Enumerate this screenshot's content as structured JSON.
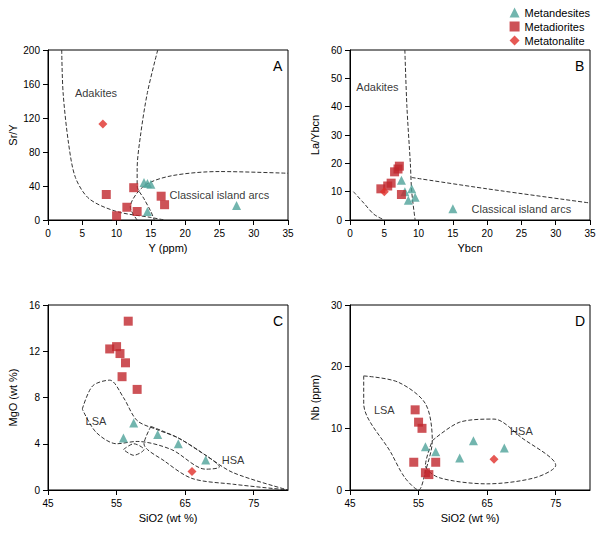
{
  "chart_data": [
    {
      "type": "scatter",
      "panel": "A",
      "x_label": "Y (ppm)",
      "y_label": "Sr/Y",
      "xlim": [
        0,
        35
      ],
      "ylim": [
        0,
        200
      ],
      "xticks": [
        0,
        5,
        10,
        15,
        20,
        25,
        30,
        35
      ],
      "yticks": [
        0,
        40,
        80,
        120,
        160,
        200
      ],
      "grid": false,
      "legend": "top-right",
      "series": [
        {
          "name": "Metandesites",
          "color": "#4fa39a",
          "marker": "triangle",
          "x": [
            14,
            14.5,
            15,
            14.5,
            27.5
          ],
          "y": [
            44,
            43,
            42,
            10,
            17
          ]
        },
        {
          "name": "Metadiorites",
          "color": "#c0272d",
          "marker": "square",
          "x": [
            8.5,
            10,
            11.5,
            12.5,
            13,
            16.5,
            17
          ],
          "y": [
            30,
            5,
            15,
            38,
            10,
            28,
            18
          ]
        },
        {
          "name": "Metatonalite",
          "color": "#e0302a",
          "marker": "diamond",
          "x": [
            8
          ],
          "y": [
            113
          ]
        }
      ],
      "regions": [
        {
          "label": "Adakites",
          "label_at": [
            7,
            150
          ],
          "line_style": "dashed",
          "paths": [
            [
              [
                2,
                200
              ],
              [
                2.2,
                150
              ],
              [
                3,
                90
              ],
              [
                4,
                50
              ],
              [
                6,
                25
              ],
              [
                10,
                10
              ],
              [
                15,
                3
              ],
              [
                17,
                0
              ]
            ],
            [
              [
                16,
                200
              ],
              [
                14.5,
                150
              ],
              [
                13.5,
                100
              ],
              [
                13,
                60
              ],
              [
                13,
                40
              ],
              [
                14,
                25
              ],
              [
                15,
                10
              ],
              [
                15.5,
                0
              ]
            ]
          ]
        },
        {
          "label": "Classical island arcs",
          "label_at": [
            25,
            30
          ],
          "line_style": "dashed",
          "paths": [
            [
              [
                13,
                0
              ],
              [
                12,
                15
              ],
              [
                14,
                40
              ],
              [
                18,
                52
              ],
              [
                25,
                57
              ],
              [
                35,
                55
              ]
            ]
          ]
        }
      ]
    },
    {
      "type": "scatter",
      "panel": "B",
      "x_label": "Ybcn",
      "y_label": "La/Ybcn",
      "xlim": [
        0,
        35
      ],
      "ylim": [
        0,
        60
      ],
      "xticks": [
        0,
        5,
        10,
        15,
        20,
        25,
        30,
        35
      ],
      "yticks": [
        0,
        10,
        20,
        30,
        40,
        50,
        60
      ],
      "grid": false,
      "legend": "top-right",
      "series": [
        {
          "name": "Metandesites",
          "color": "#4fa39a",
          "marker": "triangle",
          "x": [
            7.5,
            8,
            8.5,
            9,
            9.5,
            15
          ],
          "y": [
            14,
            10,
            7,
            11,
            8,
            4
          ]
        },
        {
          "name": "Metadiorites",
          "color": "#c0272d",
          "marker": "square",
          "x": [
            4.5,
            5.5,
            6,
            6.5,
            7,
            7.2,
            7.5
          ],
          "y": [
            11,
            12,
            13,
            17,
            18,
            19,
            9
          ]
        },
        {
          "name": "Metatonalite",
          "color": "#e0302a",
          "marker": "diamond",
          "x": [
            5
          ],
          "y": [
            10
          ]
        }
      ],
      "regions": [
        {
          "label": "Adakites",
          "label_at": [
            4,
            47
          ],
          "line_style": "dashed",
          "paths": [
            [
              [
                0.5,
                10
              ],
              [
                2,
                6
              ],
              [
                3.5,
                2
              ],
              [
                5,
                0
              ]
            ],
            [
              [
                8,
                60
              ],
              [
                8.3,
                40
              ],
              [
                8.8,
                20
              ],
              [
                9,
                10
              ],
              [
                9.5,
                0
              ]
            ]
          ]
        },
        {
          "label": "Classical island arcs",
          "label_at": [
            25,
            4
          ],
          "line_style": "dashed",
          "paths": [
            [
              [
                9,
                15
              ],
              [
                20,
                11
              ],
              [
                35,
                6
              ]
            ]
          ]
        }
      ]
    },
    {
      "type": "scatter",
      "panel": "C",
      "x_label": "SiO2 (wt %)",
      "y_label": "MgO (wt %)",
      "xlim": [
        45,
        80
      ],
      "ylim": [
        0,
        16
      ],
      "xticks": [
        45,
        55,
        65,
        75
      ],
      "yticks": [
        0,
        4,
        8,
        12,
        16
      ],
      "grid": false,
      "legend": "top-right",
      "series": [
        {
          "name": "Metandesites",
          "color": "#4fa39a",
          "marker": "triangle",
          "x": [
            56,
            57.5,
            61,
            64,
            68
          ],
          "y": [
            4.5,
            5.8,
            4.8,
            4,
            2.6
          ]
        },
        {
          "name": "Metadiorites",
          "color": "#c0272d",
          "marker": "square",
          "x": [
            54,
            55,
            55.5,
            55.8,
            56.3,
            56.7,
            58
          ],
          "y": [
            12.2,
            12.4,
            11.8,
            9.8,
            11,
            14.6,
            8.7
          ]
        },
        {
          "name": "Metatonalite",
          "color": "#e0302a",
          "marker": "diamond",
          "x": [
            66
          ],
          "y": [
            1.6
          ]
        }
      ],
      "regions": [
        {
          "label": "LSA",
          "label_at": [
            52,
            6
          ],
          "line_style": "dashed",
          "paths": [
            [
              [
                50,
                7
              ],
              [
                51.5,
                9
              ],
              [
                54,
                9.5
              ],
              [
                56,
                8
              ],
              [
                58,
                6
              ],
              [
                61,
                5.2
              ],
              [
                64,
                4.5
              ],
              [
                68,
                3
              ],
              [
                70,
                2
              ],
              [
                68,
                1.8
              ],
              [
                63,
                3.5
              ],
              [
                58,
                4.2
              ],
              [
                55,
                4
              ],
              [
                52,
                5
              ],
              [
                50,
                7
              ]
            ],
            [
              [
                56,
                3.5
              ],
              [
                57.5,
                4
              ],
              [
                59,
                3.5
              ],
              [
                57.5,
                3
              ],
              [
                56,
                3.5
              ]
            ]
          ]
        },
        {
          "label": "HSA",
          "label_at": [
            72,
            2.6
          ],
          "line_style": "dashed",
          "paths": [
            [
              [
                60,
                5.5
              ],
              [
                64,
                4.5
              ],
              [
                68,
                3
              ],
              [
                72,
                1.5
              ],
              [
                80,
                0
              ],
              [
                72,
                0.5
              ],
              [
                66,
                1
              ],
              [
                62,
                2.5
              ],
              [
                59,
                4
              ],
              [
                60,
                5.5
              ]
            ]
          ]
        }
      ]
    },
    {
      "type": "scatter",
      "panel": "D",
      "x_label": "SiO2 (wt %)",
      "y_label": "Nb (ppm)",
      "xlim": [
        45,
        80
      ],
      "ylim": [
        0,
        30
      ],
      "xticks": [
        45,
        55,
        65,
        75
      ],
      "yticks": [
        0,
        10,
        20,
        30
      ],
      "grid": false,
      "legend": "top-right",
      "series": [
        {
          "name": "Metandesites",
          "color": "#4fa39a",
          "marker": "triangle",
          "x": [
            56,
            57.5,
            61,
            63,
            67.5
          ],
          "y": [
            7,
            6.2,
            5.2,
            8,
            6.8
          ]
        },
        {
          "name": "Metadiorites",
          "color": "#c0272d",
          "marker": "square",
          "x": [
            54.5,
            55,
            55.5,
            54.3,
            56,
            56.5,
            57.5
          ],
          "y": [
            13,
            11,
            10,
            4.5,
            2.8,
            2.5,
            4.5
          ]
        },
        {
          "name": "Metatonalite",
          "color": "#e0302a",
          "marker": "diamond",
          "x": [
            66
          ],
          "y": [
            5
          ]
        }
      ],
      "regions": [
        {
          "label": "LSA",
          "label_at": [
            50,
            13
          ],
          "line_style": "dashed",
          "paths": [
            [
              [
                47,
                18.5
              ],
              [
                52,
                17.5
              ],
              [
                56,
                14
              ],
              [
                57,
                8
              ],
              [
                56,
                3
              ],
              [
                55,
                0
              ],
              [
                53,
                2
              ],
              [
                51,
                6
              ],
              [
                47,
                14
              ],
              [
                47,
                18.5
              ]
            ]
          ]
        },
        {
          "label": "HSA",
          "label_at": [
            70,
            9.5
          ],
          "line_style": "dashed",
          "paths": [
            [
              [
                57,
                8
              ],
              [
                61,
                11
              ],
              [
                66,
                11.5
              ],
              [
                70,
                8.5
              ],
              [
                75,
                4
              ],
              [
                72,
                2
              ],
              [
                65,
                1
              ],
              [
                58,
                2
              ],
              [
                56,
                4
              ],
              [
                57,
                8
              ]
            ]
          ]
        }
      ]
    }
  ]
}
